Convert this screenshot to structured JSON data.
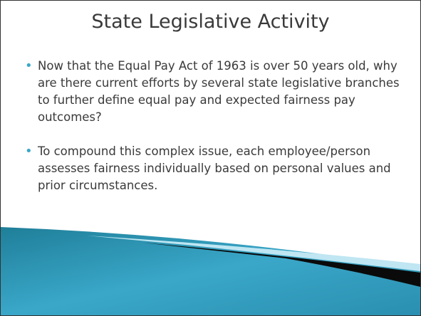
{
  "header": {
    "title": "State Legislative Activity"
  },
  "bullets": [
    "Now that the Equal Pay Act of 1963 is over 50 years old, why are there current efforts by several state legislative branches to further define equal pay and expected fairness pay outcomes?",
    "To compound this complex issue, each employee/person assesses fairness individually based on personal values and prior circumstances."
  ]
}
